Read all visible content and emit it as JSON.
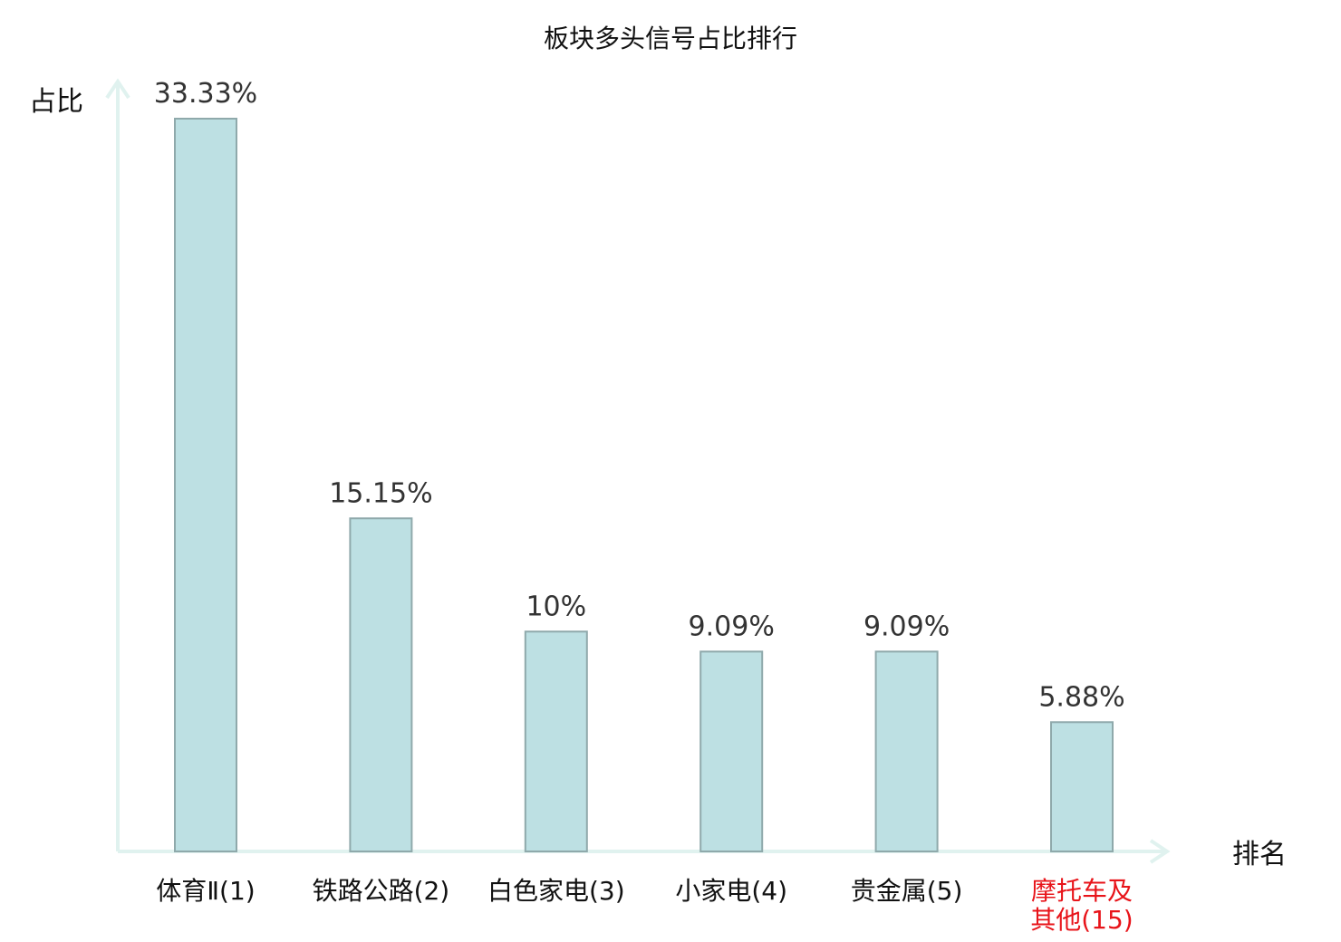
{
  "chart_data": {
    "type": "bar",
    "title": "板块多头信号占比排行",
    "ylabel": "占比",
    "xlabel": "排名",
    "ylim": [
      0,
      35
    ],
    "grid": false,
    "categories": [
      {
        "name": "体育Ⅱ",
        "rank": "(1)",
        "highlight": false
      },
      {
        "name": "铁路公路",
        "rank": "(2)",
        "highlight": false
      },
      {
        "name": "白色家电",
        "rank": "(3)",
        "highlight": false
      },
      {
        "name": "小家电",
        "rank": "(4)",
        "highlight": false
      },
      {
        "name": "贵金属",
        "rank": "(5)",
        "highlight": false
      },
      {
        "name": "摩托车及其他",
        "rank": "(15)",
        "highlight": true,
        "lines": [
          "摩托车及",
          "其他"
        ]
      }
    ],
    "values": [
      33.33,
      15.15,
      10,
      9.09,
      9.09,
      5.88
    ],
    "value_labels": [
      "33.33%",
      "15.15%",
      "10%",
      "9.09%",
      "9.09%",
      "5.88%"
    ],
    "colors": {
      "bar_fill": "#bde0e3",
      "bar_stroke": "#8fa9ab",
      "axis": "#e0f2ef",
      "highlight_text": "#e8141a"
    }
  }
}
